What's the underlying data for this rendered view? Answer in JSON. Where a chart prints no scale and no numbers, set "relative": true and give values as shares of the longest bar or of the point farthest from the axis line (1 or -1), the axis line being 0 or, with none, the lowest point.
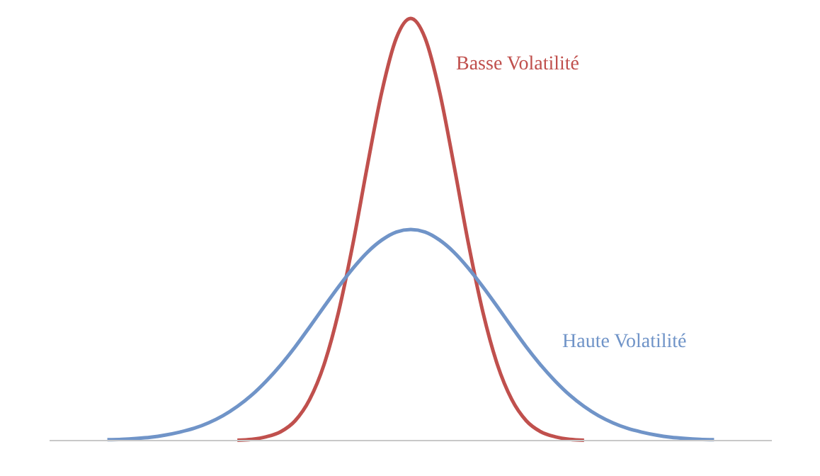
{
  "chart_data": {
    "type": "line",
    "relative": true,
    "marker": "none",
    "line_style": "solid",
    "categories": [
      null,
      null,
      null,
      null,
      null,
      null,
      null,
      null,
      null,
      null,
      null,
      null,
      null,
      null,
      null,
      null,
      null,
      null,
      null,
      null,
      null,
      null,
      null,
      null,
      null,
      null,
      null,
      null,
      null,
      null,
      null,
      null,
      null,
      null,
      null,
      null,
      null,
      null,
      null,
      null,
      null,
      null,
      null,
      null,
      null,
      null,
      null,
      null,
      null,
      null,
      null
    ],
    "series": [
      {
        "name": "Basse Volatilité",
        "color": "#c0504d",
        "values": [
          null,
          null,
          null,
          null,
          null,
          null,
          null,
          null,
          null,
          null,
          null,
          null,
          null,
          0.001,
          0.003,
          0.009,
          0.021,
          0.047,
          0.097,
          0.18,
          0.304,
          0.466,
          0.651,
          0.826,
          0.953,
          1,
          0.953,
          0.826,
          0.651,
          0.466,
          0.304,
          0.18,
          0.097,
          0.047,
          0.021,
          0.009,
          0.003,
          0.001,
          null,
          null,
          null,
          null,
          null,
          null,
          null,
          null,
          null,
          null,
          null,
          null,
          null
        ]
      },
      {
        "name": "Haute Volatilité",
        "color": "#7094c8",
        "values": [
          null,
          null,
          null,
          null,
          0.002,
          0.003,
          0.005,
          0.008,
          0.013,
          0.02,
          0.029,
          0.042,
          0.059,
          0.081,
          0.108,
          0.141,
          0.179,
          0.222,
          0.269,
          0.317,
          0.364,
          0.408,
          0.446,
          0.475,
          0.494,
          0.5,
          0.494,
          0.475,
          0.446,
          0.408,
          0.364,
          0.317,
          0.269,
          0.222,
          0.179,
          0.141,
          0.108,
          0.081,
          0.059,
          0.042,
          0.029,
          0.02,
          0.013,
          0.008,
          0.005,
          0.003,
          0.002,
          null,
          null,
          null,
          null
        ]
      }
    ]
  }
}
